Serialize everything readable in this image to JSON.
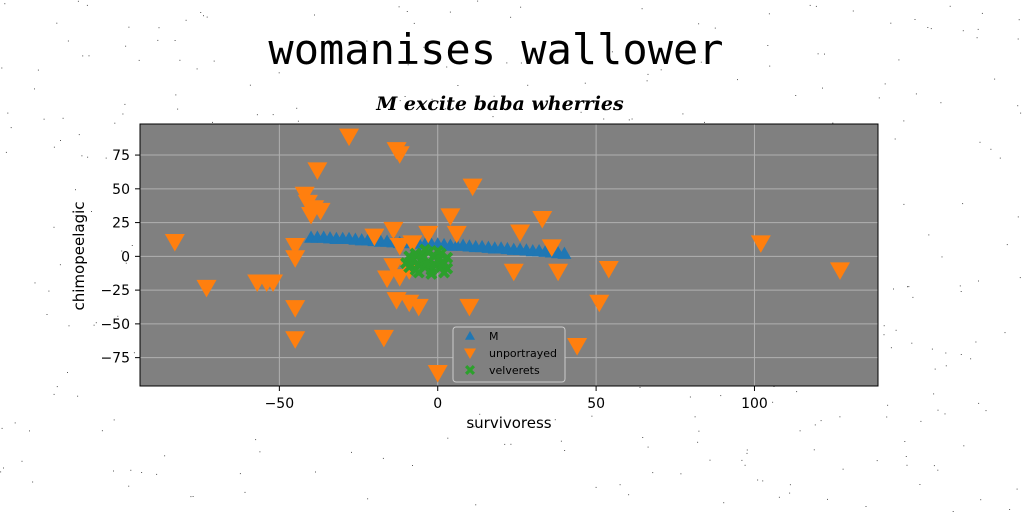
{
  "chart_data": {
    "type": "scatter",
    "title": "womanises wallower",
    "subtitle": "M excite baba wherries",
    "xlabel": "survivoress",
    "ylabel": "chimopeelagic",
    "xlim": [
      -94,
      139
    ],
    "ylim": [
      -96,
      98
    ],
    "xticks": [
      -50,
      0,
      50,
      100
    ],
    "yticks": [
      -75,
      -50,
      -25,
      0,
      25,
      50,
      75
    ],
    "grid": true,
    "background": "#808080",
    "legend_position": "lower-center",
    "series": [
      {
        "name": "M",
        "marker": "triangle-up",
        "color": "#1f77b4",
        "points": [
          [
            -40,
            14
          ],
          [
            -38,
            14
          ],
          [
            -36,
            14
          ],
          [
            -34,
            13.5
          ],
          [
            -32,
            13
          ],
          [
            -30,
            13
          ],
          [
            -28,
            13
          ],
          [
            -26,
            12.5
          ],
          [
            -24,
            12
          ],
          [
            -22,
            12
          ],
          [
            -20,
            11.5
          ],
          [
            -18,
            11
          ],
          [
            -16,
            11
          ],
          [
            -14,
            10.5
          ],
          [
            -12,
            10
          ],
          [
            -10,
            10
          ],
          [
            -8,
            10
          ],
          [
            -6,
            9.5
          ],
          [
            -4,
            9
          ],
          [
            -2,
            9
          ],
          [
            0,
            9
          ],
          [
            2,
            8.5
          ],
          [
            4,
            8
          ],
          [
            6,
            8
          ],
          [
            8,
            8
          ],
          [
            10,
            7.5
          ],
          [
            12,
            7
          ],
          [
            14,
            7
          ],
          [
            16,
            6.5
          ],
          [
            18,
            6
          ],
          [
            20,
            6
          ],
          [
            22,
            5.5
          ],
          [
            24,
            5
          ],
          [
            26,
            5
          ],
          [
            28,
            4.5
          ],
          [
            30,
            4
          ],
          [
            32,
            4
          ],
          [
            34,
            3.5
          ],
          [
            36,
            3
          ],
          [
            38,
            2.5
          ],
          [
            40,
            2
          ]
        ]
      },
      {
        "name": "unportrayed",
        "marker": "triangle-down",
        "color": "#ff7f0e",
        "points": [
          [
            -28,
            89
          ],
          [
            -13,
            79
          ],
          [
            -12,
            76
          ],
          [
            -38,
            64
          ],
          [
            11,
            52
          ],
          [
            -42,
            46
          ],
          [
            -41,
            40
          ],
          [
            -39,
            36
          ],
          [
            -37,
            34
          ],
          [
            -40,
            31
          ],
          [
            4,
            30
          ],
          [
            33,
            28
          ],
          [
            -14,
            20
          ],
          [
            -20,
            15
          ],
          [
            -3,
            17
          ],
          [
            6,
            17
          ],
          [
            26,
            18
          ],
          [
            -45,
            8
          ],
          [
            -12,
            8
          ],
          [
            -8,
            10
          ],
          [
            36,
            7
          ],
          [
            102,
            10
          ],
          [
            -83,
            11
          ],
          [
            -45,
            -1
          ],
          [
            -14,
            -7
          ],
          [
            -9,
            -10
          ],
          [
            -16,
            -16
          ],
          [
            -12,
            -15
          ],
          [
            24,
            -11
          ],
          [
            38,
            -11
          ],
          [
            54,
            -9
          ],
          [
            127,
            -10
          ],
          [
            -57,
            -19
          ],
          [
            -54,
            -19
          ],
          [
            -52,
            -19
          ],
          [
            -73,
            -23
          ],
          [
            -13,
            -32
          ],
          [
            -9,
            -34
          ],
          [
            -6,
            -37
          ],
          [
            -45,
            -38
          ],
          [
            10,
            -37
          ],
          [
            51,
            -34
          ],
          [
            -17,
            -60
          ],
          [
            -45,
            -61
          ],
          [
            44,
            -66
          ],
          [
            0,
            -86
          ]
        ]
      },
      {
        "name": "velverets",
        "marker": "x",
        "color": "#2ca02c",
        "points": [
          [
            -10,
            -5
          ],
          [
            -9,
            -8
          ],
          [
            -8,
            -3
          ],
          [
            -7,
            -10
          ],
          [
            -6,
            -6
          ],
          [
            -5,
            -2
          ],
          [
            -4,
            -8
          ],
          [
            -3,
            -4
          ],
          [
            -2,
            -10
          ],
          [
            -1,
            -6
          ],
          [
            0,
            -3
          ],
          [
            1,
            -8
          ],
          [
            2,
            -5
          ],
          [
            3,
            -9
          ],
          [
            -9,
            0
          ],
          [
            -7,
            2
          ],
          [
            -5,
            1
          ],
          [
            -3,
            3
          ],
          [
            -1,
            0
          ],
          [
            1,
            2
          ],
          [
            3,
            -1
          ],
          [
            -6,
            -12
          ],
          [
            -2,
            -13
          ],
          [
            2,
            -12
          ],
          [
            -4,
            5
          ],
          [
            0,
            4
          ]
        ]
      }
    ]
  }
}
